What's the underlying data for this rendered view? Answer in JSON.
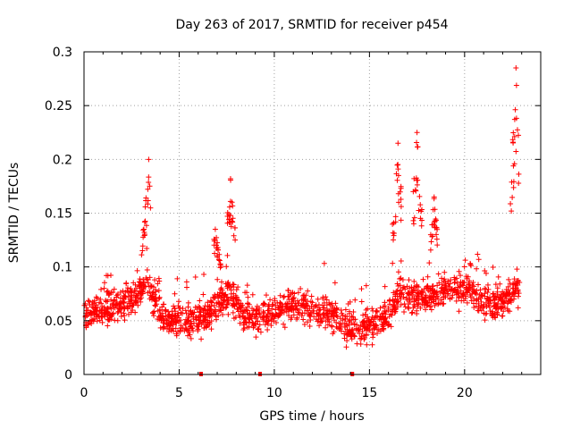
{
  "chart_data": {
    "type": "scatter",
    "title": "Day 263 of 2017, SRMTID for receiver p454",
    "xlabel": "GPS time / hours",
    "ylabel": "SRMTID / TECUs",
    "xlim": [
      0,
      24
    ],
    "ylim": [
      0,
      0.3
    ],
    "x_ticks": [
      0,
      5,
      10,
      15,
      20
    ],
    "x_tick_labels": [
      "0",
      "5",
      "10",
      "15",
      "20"
    ],
    "y_ticks": [
      0,
      0.05,
      0.1,
      0.15,
      0.2,
      0.25,
      0.3
    ],
    "y_tick_labels": [
      "0",
      "0.05",
      "0.1",
      "0.15",
      "0.2",
      "0.25",
      "0.3"
    ],
    "grid": true,
    "marker": "plus",
    "color": "#ff0000",
    "gap_markers_x": [
      6.15,
      9.25,
      14.1
    ],
    "series": [
      {
        "name": "SRMTID",
        "profile": [
          [
            0.0,
            0.055
          ],
          [
            1.0,
            0.06
          ],
          [
            2.0,
            0.065
          ],
          [
            2.8,
            0.075
          ],
          [
            3.4,
            0.085
          ],
          [
            4.0,
            0.055
          ],
          [
            5.0,
            0.05
          ],
          [
            6.0,
            0.05
          ],
          [
            6.8,
            0.06
          ],
          [
            7.5,
            0.075
          ],
          [
            8.2,
            0.06
          ],
          [
            9.0,
            0.05
          ],
          [
            10.0,
            0.06
          ],
          [
            11.0,
            0.065
          ],
          [
            12.0,
            0.06
          ],
          [
            13.0,
            0.055
          ],
          [
            14.0,
            0.04
          ],
          [
            15.0,
            0.045
          ],
          [
            16.0,
            0.055
          ],
          [
            16.6,
            0.075
          ],
          [
            17.5,
            0.07
          ],
          [
            18.5,
            0.075
          ],
          [
            19.5,
            0.08
          ],
          [
            20.5,
            0.075
          ],
          [
            21.5,
            0.065
          ],
          [
            22.3,
            0.07
          ],
          [
            22.8,
            0.08
          ]
        ],
        "bursts": [
          {
            "x0": 3.0,
            "x1": 3.5,
            "xpeak": 3.4,
            "ypeak": 0.2
          },
          {
            "x0": 6.8,
            "x1": 7.2,
            "xpeak": 6.9,
            "ypeak": 0.135
          },
          {
            "x0": 7.5,
            "x1": 8.0,
            "xpeak": 7.7,
            "ypeak": 0.182
          },
          {
            "x0": 16.2,
            "x1": 16.7,
            "xpeak": 16.5,
            "ypeak": 0.215
          },
          {
            "x0": 17.3,
            "x1": 17.8,
            "xpeak": 17.5,
            "ypeak": 0.225
          },
          {
            "x0": 18.2,
            "x1": 18.6,
            "xpeak": 18.4,
            "ypeak": 0.165
          },
          {
            "x0": 22.4,
            "x1": 22.9,
            "xpeak": 22.7,
            "ypeak": 0.285
          }
        ],
        "points_per_hour": 75,
        "x_end": 22.9
      }
    ]
  }
}
